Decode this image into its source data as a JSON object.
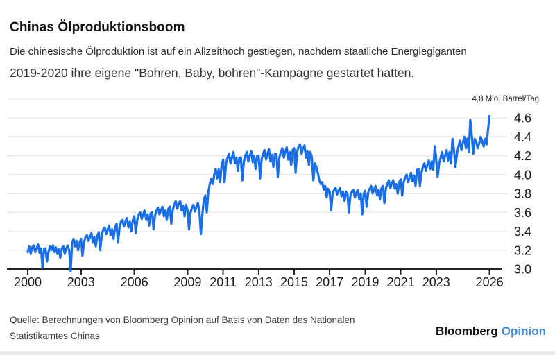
{
  "header": {
    "title": "Chinas Ölproduktionsboom",
    "subtitle_line1": "Die chinesische Ölproduktion ist auf ein Allzeithoch gestiegen, nachdem staatliche Energiegiganten",
    "subtitle_line2": "2019-2020 ihre eigene \"Bohren, Baby, bohren\"-Kampagne gestartet hatten."
  },
  "chart_data": {
    "type": "line",
    "title": "Chinas Ölproduktionsboom",
    "unit_label": "4,8 Mio. Barrel/Tag",
    "x_start_year": 2000,
    "frequency": "monthly",
    "xlim": [
      2000,
      2026.2
    ],
    "ylim": [
      3.0,
      4.8
    ],
    "grid": true,
    "legend": "none",
    "x_ticks": [
      2000,
      2003,
      2006,
      2009,
      2011,
      2013,
      2015,
      2017,
      2019,
      2021,
      2023,
      2026
    ],
    "y_ticks": [
      3.0,
      3.2,
      3.4,
      3.6,
      3.8,
      4.0,
      4.2,
      4.4,
      4.6
    ],
    "values": [
      3.18,
      3.24,
      3.16,
      3.23,
      3.25,
      3.18,
      3.22,
      3.26,
      3.17,
      3.22,
      3.01,
      3.21,
      3.22,
      3.08,
      3.18,
      3.24,
      3.2,
      3.25,
      3.18,
      3.23,
      3.16,
      3.21,
      3.12,
      3.22,
      3.24,
      3.16,
      3.22,
      3.25,
      3.2,
      2.98,
      3.28,
      3.32,
      3.24,
      3.3,
      3.2,
      3.28,
      3.32,
      3.14,
      3.28,
      3.34,
      3.36,
      3.3,
      3.34,
      3.38,
      3.28,
      3.34,
      3.24,
      3.35,
      3.39,
      3.2,
      3.36,
      3.42,
      3.44,
      3.37,
      3.42,
      3.46,
      3.36,
      3.42,
      3.32,
      3.44,
      3.48,
      3.28,
      3.44,
      3.5,
      3.52,
      3.45,
      3.5,
      3.54,
      3.44,
      3.5,
      3.4,
      3.52,
      3.56,
      3.38,
      3.52,
      3.58,
      3.6,
      3.53,
      3.58,
      3.62,
      3.52,
      3.58,
      3.46,
      3.59,
      3.6,
      3.42,
      3.57,
      3.62,
      3.65,
      3.58,
      3.62,
      3.66,
      3.56,
      3.62,
      3.52,
      3.64,
      3.66,
      3.48,
      3.63,
      3.68,
      3.72,
      3.64,
      3.69,
      3.72,
      3.62,
      3.67,
      3.56,
      3.68,
      3.62,
      3.42,
      3.6,
      3.65,
      3.68,
      3.61,
      3.66,
      3.7,
      3.6,
      3.37,
      3.58,
      3.74,
      3.78,
      3.6,
      3.82,
      3.9,
      3.96,
      3.9,
      4.0,
      4.06,
      3.96,
      4.06,
      3.92,
      4.1,
      4.16,
      3.92,
      4.12,
      4.18,
      4.22,
      4.12,
      4.18,
      4.24,
      4.12,
      4.18,
      4.04,
      4.18,
      4.18,
      3.94,
      4.14,
      4.2,
      4.24,
      4.14,
      4.2,
      4.25,
      4.13,
      4.2,
      4.06,
      4.2,
      4.2,
      3.96,
      4.16,
      4.22,
      4.26,
      4.16,
      4.22,
      4.27,
      4.14,
      4.21,
      4.08,
      4.22,
      4.22,
      3.98,
      4.18,
      4.24,
      4.28,
      4.18,
      4.24,
      4.29,
      4.16,
      4.24,
      4.1,
      4.26,
      4.28,
      4.02,
      4.24,
      4.3,
      4.32,
      4.22,
      4.28,
      4.31,
      4.18,
      4.25,
      4.1,
      4.24,
      4.18,
      3.94,
      4.12,
      4.08,
      4.02,
      3.94,
      3.9,
      3.92,
      3.84,
      3.88,
      3.76,
      3.85,
      3.82,
      3.62,
      3.8,
      3.84,
      3.86,
      3.79,
      3.83,
      3.86,
      3.77,
      3.82,
      3.72,
      3.82,
      3.8,
      3.6,
      3.78,
      3.82,
      3.84,
      3.76,
      3.81,
      3.84,
      3.74,
      3.8,
      3.58,
      3.8,
      3.83,
      3.66,
      3.81,
      3.85,
      3.88,
      3.8,
      3.85,
      3.88,
      3.78,
      3.84,
      3.74,
      3.86,
      3.88,
      3.7,
      3.86,
      3.9,
      3.94,
      3.86,
      3.91,
      3.94,
      3.85,
      3.9,
      3.8,
      3.92,
      3.95,
      3.78,
      3.92,
      3.97,
      4.0,
      3.92,
      3.97,
      4.02,
      3.93,
      3.99,
      3.88,
      4.05,
      4.06,
      3.88,
      4.02,
      4.08,
      4.12,
      4.04,
      4.1,
      4.15,
      4.06,
      4.14,
      4.05,
      4.3,
      4.16,
      3.98,
      4.12,
      4.18,
      4.24,
      4.14,
      4.2,
      4.26,
      4.15,
      4.24,
      4.12,
      4.38,
      4.26,
      4.08,
      4.22,
      4.3,
      4.36,
      4.26,
      4.34,
      4.4,
      4.28,
      4.38,
      4.24,
      4.58,
      4.42,
      4.22,
      4.38,
      4.35,
      4.28,
      4.33,
      4.4,
      4.36,
      4.3,
      4.38,
      4.32,
      4.48,
      4.62
    ]
  },
  "footer": {
    "source_line1": "Quelle: Berechnungen von Bloomberg Opinion auf Basis von Daten des Nationalen",
    "source_line2": "Statistikamtes Chinas",
    "logo_primary": "Bloomberg",
    "logo_secondary": "Opinion"
  },
  "colors": {
    "line": "#1b6fe6",
    "grid": "#e8e8e8",
    "axis": "#222222",
    "logo_accent": "#4189d5"
  }
}
